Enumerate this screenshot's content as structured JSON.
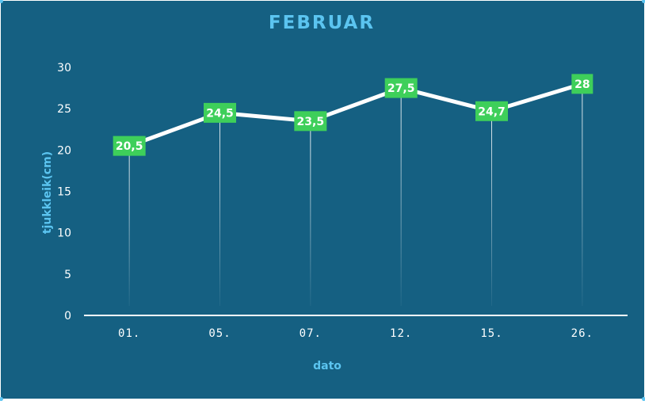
{
  "chart_data": {
    "type": "line",
    "title": "FEBRUAR",
    "xlabel": "dato",
    "ylabel": "tjukkleik(cm)",
    "categories": [
      "01.",
      "05.",
      "07.",
      "12.",
      "15.",
      "26."
    ],
    "values": [
      20.5,
      24.5,
      23.5,
      27.5,
      24.7,
      28
    ],
    "data_labels": [
      "20,5",
      "24,5",
      "23,5",
      "27,5",
      "24,7",
      "28"
    ],
    "yticks": [
      0,
      5,
      10,
      15,
      20,
      25,
      30
    ],
    "ylim": [
      0,
      30
    ],
    "grid": false,
    "colors": {
      "background": "#156082",
      "line": "#ffffff",
      "label_box": "#3ecf5a",
      "accent": "#5bc4f0"
    }
  }
}
